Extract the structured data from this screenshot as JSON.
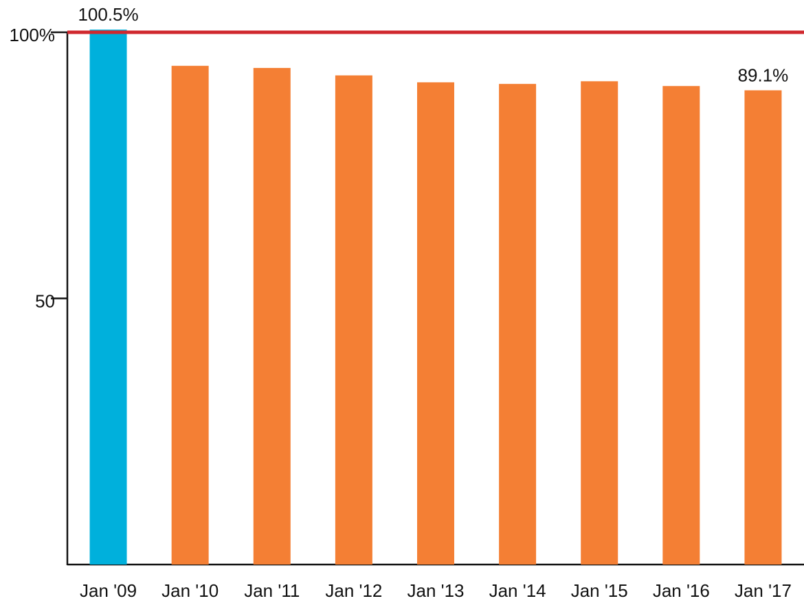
{
  "chart_data": {
    "type": "bar",
    "categories": [
      "Jan '09",
      "Jan '10",
      "Jan '11",
      "Jan '12",
      "Jan '13",
      "Jan '14",
      "Jan '15",
      "Jan '16",
      "Jan '17"
    ],
    "values": [
      100.5,
      93.7,
      93.3,
      91.9,
      90.6,
      90.3,
      90.8,
      89.9,
      89.1
    ],
    "value_labels": [
      "100.5%",
      null,
      null,
      null,
      null,
      null,
      null,
      null,
      "89.1%"
    ],
    "colors": [
      "#00b0dc",
      "#f47f34",
      "#f47f34",
      "#f47f34",
      "#f47f34",
      "#f47f34",
      "#f47f34",
      "#f47f34",
      "#f47f34"
    ],
    "ylim": [
      0,
      100
    ],
    "yticks": [
      50,
      {
        "value": 100,
        "label": "100%"
      }
    ],
    "reference_line": {
      "value": 100,
      "color": "#d0282e"
    }
  }
}
